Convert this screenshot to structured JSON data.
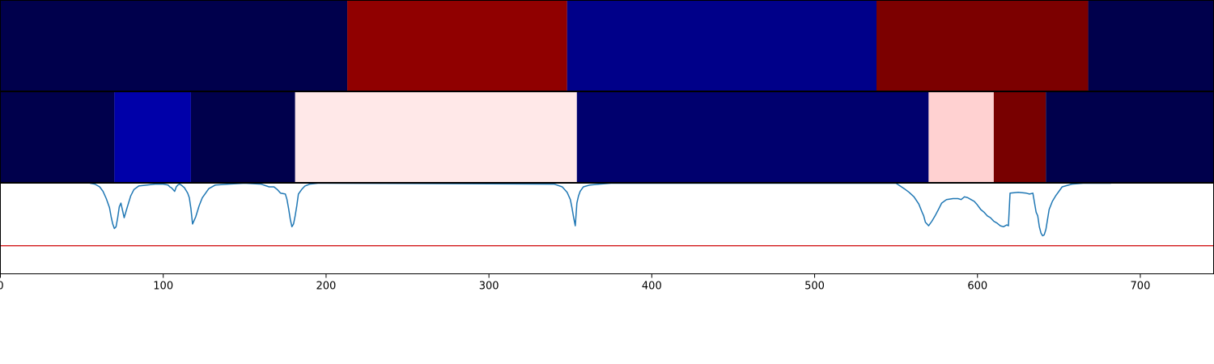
{
  "chart_data": [
    {
      "type": "heatmap",
      "title": "",
      "xlim": [
        0,
        745
      ],
      "colormap": "seismic",
      "color_scale": [
        -1,
        1
      ],
      "segments": [
        {
          "start": 0,
          "end": 213,
          "value": -0.64,
          "color": "#00004c"
        },
        {
          "start": 213,
          "end": 348,
          "value": 0.79,
          "color": "#900000"
        },
        {
          "start": 348,
          "end": 538,
          "value": -0.91,
          "color": "#000089"
        },
        {
          "start": 538,
          "end": 668,
          "value": 0.67,
          "color": "#7c0000"
        },
        {
          "start": 668,
          "end": 745,
          "value": -0.64,
          "color": "#00004c"
        }
      ]
    },
    {
      "type": "heatmap",
      "title": "",
      "xlim": [
        0,
        745
      ],
      "colormap": "seismic",
      "color_scale": [
        -1,
        1
      ],
      "segments": [
        {
          "start": 0,
          "end": 70,
          "value": -0.64,
          "color": "#00004c"
        },
        {
          "start": 70,
          "end": 117,
          "value": -1.0,
          "color": "#0000a9"
        },
        {
          "start": 117,
          "end": 181,
          "value": -0.64,
          "color": "#00004c"
        },
        {
          "start": 181,
          "end": 354,
          "value": 0.1,
          "color": "#ffe8e8"
        },
        {
          "start": 354,
          "end": 570,
          "value": -0.77,
          "color": "#00006e"
        },
        {
          "start": 570,
          "end": 610,
          "value": 0.2,
          "color": "#ffd1d1"
        },
        {
          "start": 610,
          "end": 642,
          "value": 0.6,
          "color": "#780000"
        },
        {
          "start": 642,
          "end": 745,
          "value": -0.64,
          "color": "#00004c"
        }
      ]
    },
    {
      "type": "line",
      "title": "",
      "xlabel": "",
      "ylabel": "",
      "xlim": [
        0,
        745
      ],
      "ylim": [
        0,
        1
      ],
      "xticks": [
        0,
        100,
        200,
        300,
        400,
        500,
        600,
        700
      ],
      "threshold": {
        "value": 0.31,
        "color": "#d62728"
      },
      "series": [
        {
          "color": "#1f77b4",
          "x": [
            55,
            58,
            61,
            63,
            65,
            67,
            68,
            69,
            70,
            71,
            72,
            73,
            74,
            75,
            76,
            78,
            80,
            82,
            85,
            90,
            95,
            100,
            103,
            104,
            105,
            106,
            107,
            108,
            109,
            110,
            111,
            113,
            115,
            116,
            117,
            118,
            120,
            122,
            124,
            128,
            132,
            140,
            150,
            160,
            165,
            168,
            170,
            172,
            175,
            176,
            177,
            178,
            179,
            180,
            181,
            182,
            183,
            185,
            187,
            190,
            195,
            200,
            340,
            345,
            348,
            350,
            351,
            352,
            353,
            354,
            355,
            356,
            358,
            362,
            368,
            375,
            550,
            555,
            558,
            561,
            564,
            566,
            567,
            568,
            569,
            570,
            572,
            574,
            576,
            578,
            581,
            585,
            588,
            590,
            592,
            594,
            596,
            598,
            600,
            602,
            604,
            606,
            608,
            610,
            612,
            614,
            616,
            618,
            619,
            620,
            625,
            630,
            632,
            634,
            636,
            637,
            638,
            639,
            640,
            641,
            642,
            643,
            644,
            646,
            648,
            652,
            658,
            665,
            675,
            682
          ],
          "y": [
            1.0,
            0.99,
            0.96,
            0.91,
            0.83,
            0.73,
            0.63,
            0.55,
            0.5,
            0.52,
            0.62,
            0.74,
            0.78,
            0.7,
            0.62,
            0.74,
            0.86,
            0.93,
            0.97,
            0.98,
            0.99,
            0.99,
            0.98,
            0.96,
            0.95,
            0.93,
            0.91,
            0.96,
            0.98,
            0.99,
            0.98,
            0.95,
            0.89,
            0.84,
            0.72,
            0.55,
            0.63,
            0.75,
            0.84,
            0.94,
            0.98,
            0.99,
            1.0,
            0.99,
            0.96,
            0.96,
            0.93,
            0.89,
            0.88,
            0.82,
            0.72,
            0.6,
            0.52,
            0.55,
            0.64,
            0.75,
            0.88,
            0.93,
            0.97,
            0.99,
            1.0,
            1.0,
            0.99,
            0.96,
            0.9,
            0.82,
            0.73,
            0.62,
            0.53,
            0.78,
            0.86,
            0.91,
            0.96,
            0.98,
            0.99,
            1.0,
            1.0,
            0.94,
            0.9,
            0.85,
            0.77,
            0.68,
            0.64,
            0.57,
            0.55,
            0.53,
            0.58,
            0.64,
            0.71,
            0.78,
            0.82,
            0.83,
            0.83,
            0.82,
            0.85,
            0.84,
            0.82,
            0.8,
            0.76,
            0.71,
            0.68,
            0.64,
            0.62,
            0.58,
            0.56,
            0.53,
            0.52,
            0.54,
            0.53,
            0.89,
            0.9,
            0.89,
            0.88,
            0.89,
            0.68,
            0.64,
            0.52,
            0.45,
            0.42,
            0.43,
            0.49,
            0.6,
            0.71,
            0.8,
            0.86,
            0.96,
            0.99,
            1.0,
            1.0,
            1.0
          ]
        }
      ]
    }
  ]
}
